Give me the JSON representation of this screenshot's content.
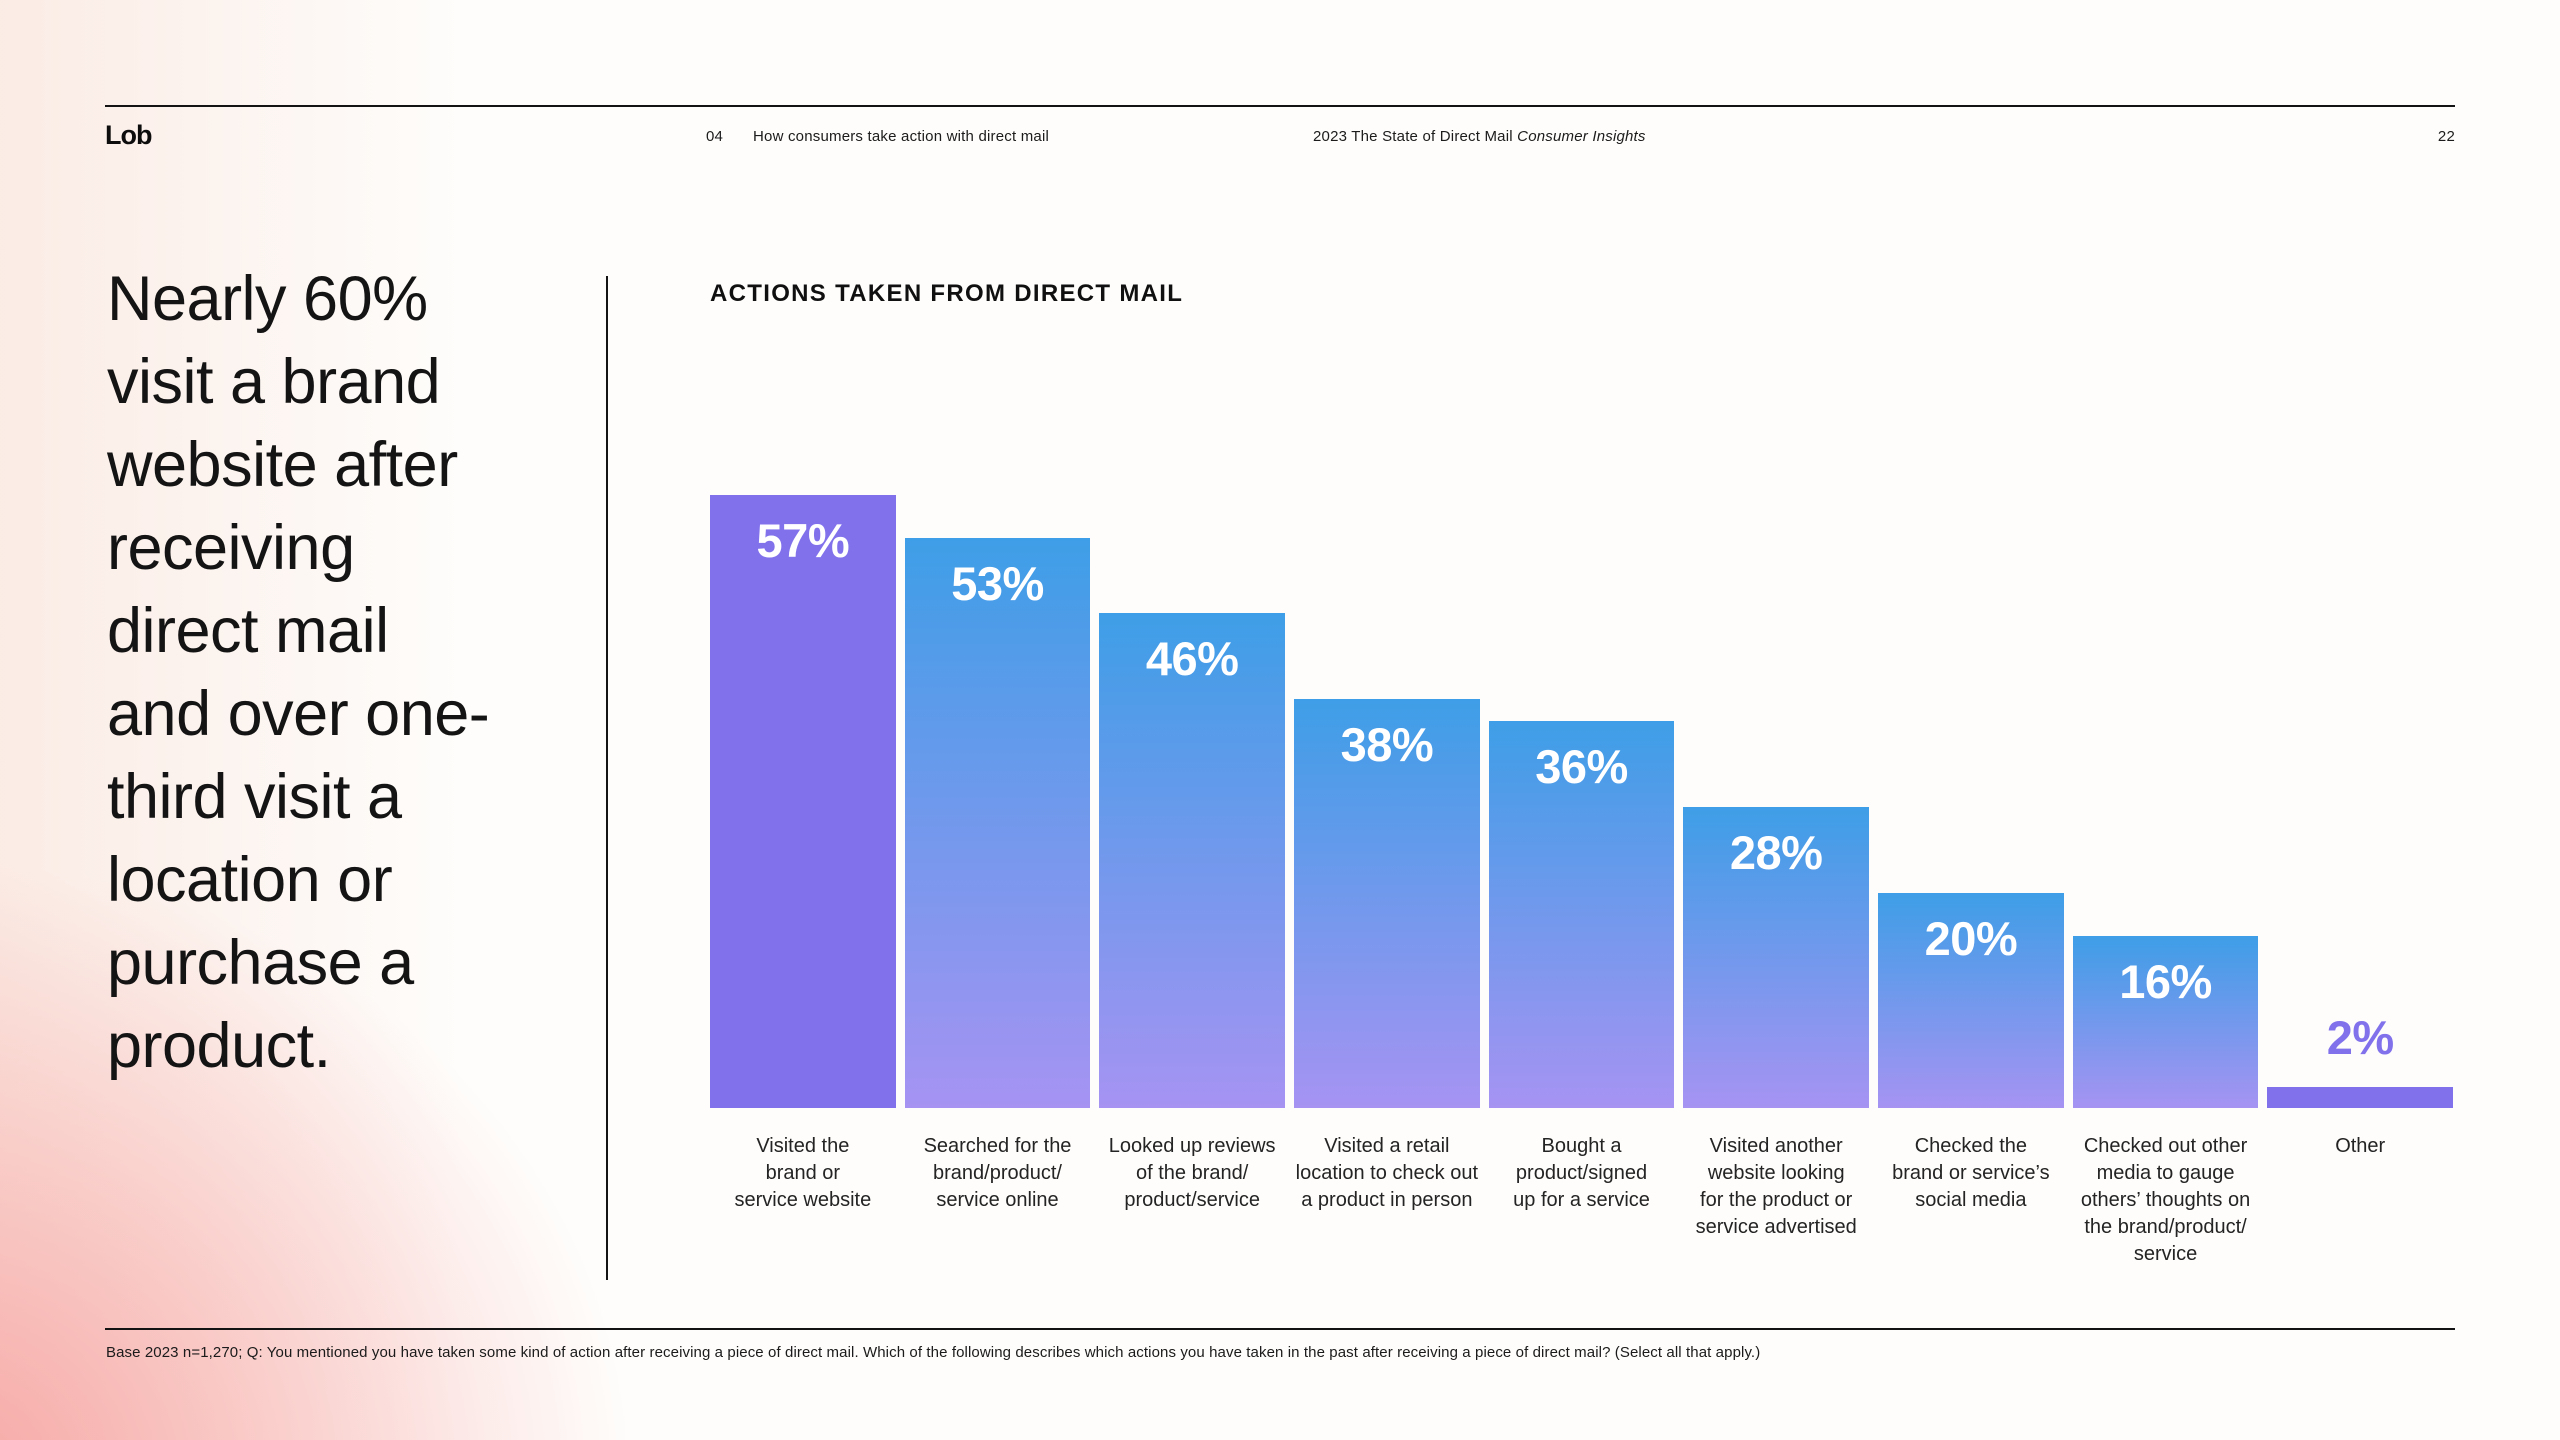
{
  "header": {
    "logo": "Lob",
    "section_number": "04",
    "section_title": "How consumers take action with direct mail",
    "report_title": "2023 The State of Direct Mail",
    "report_edition": "Consumer Insights",
    "page_number": "22"
  },
  "headline": {
    "text": "Nearly 60% visit a brand website after receiving direct mail and over one-third visit a location or purchase a product.",
    "lines": [
      "Nearly 60%",
      "visit a brand",
      "website after",
      "receiving",
      "direct mail",
      "and over one-",
      "third visit a",
      "location or",
      "purchase a",
      "product."
    ]
  },
  "chart_data": {
    "type": "bar",
    "title": "ACTIONS TAKEN FROM DIRECT MAIL",
    "categories": [
      "Visited the\nbrand or\nservice website",
      "Searched for the\nbrand/product/\nservice online",
      "Looked up reviews\nof the brand/\nproduct/service",
      "Visited a retail\nlocation to check out\na product in person",
      "Bought a\nproduct/signed\nup for a service",
      "Visited another\nwebsite looking\nfor the product or\nservice advertised",
      "Checked the\nbrand or service’s\nsocial media",
      "Checked out other\nmedia to gauge\nothers’ thoughts on\nthe brand/product/\nservice",
      "Other"
    ],
    "values": [
      57,
      53,
      46,
      38,
      36,
      28,
      20,
      16,
      2
    ],
    "value_labels": [
      "57%",
      "53%",
      "46%",
      "38%",
      "36%",
      "28%",
      "20%",
      "16%",
      "2%"
    ],
    "unit": "%",
    "ylim": [
      0,
      60
    ],
    "grid": false,
    "legend": null,
    "bar_styles": [
      "solid",
      "gradient",
      "gradient",
      "gradient",
      "gradient",
      "gradient",
      "gradient",
      "gradient",
      "solid"
    ],
    "value_label_positions": [
      "inside",
      "inside",
      "inside",
      "inside",
      "inside",
      "inside",
      "inside",
      "inside",
      "above"
    ],
    "colors": {
      "solid_purple": "#8172EC",
      "gradient_top": "#3E9EE7",
      "gradient_bottom": "#A693F2",
      "small_bar_label": "#8172EC",
      "value_label": "#FFFFFF"
    }
  },
  "footnote": "Base 2023 n=1,270; Q: You mentioned you have taken some kind of action after receiving a piece of direct mail. Which of the following describes which actions you have taken in the past after receiving a piece of direct mail? (Select all that apply.)"
}
